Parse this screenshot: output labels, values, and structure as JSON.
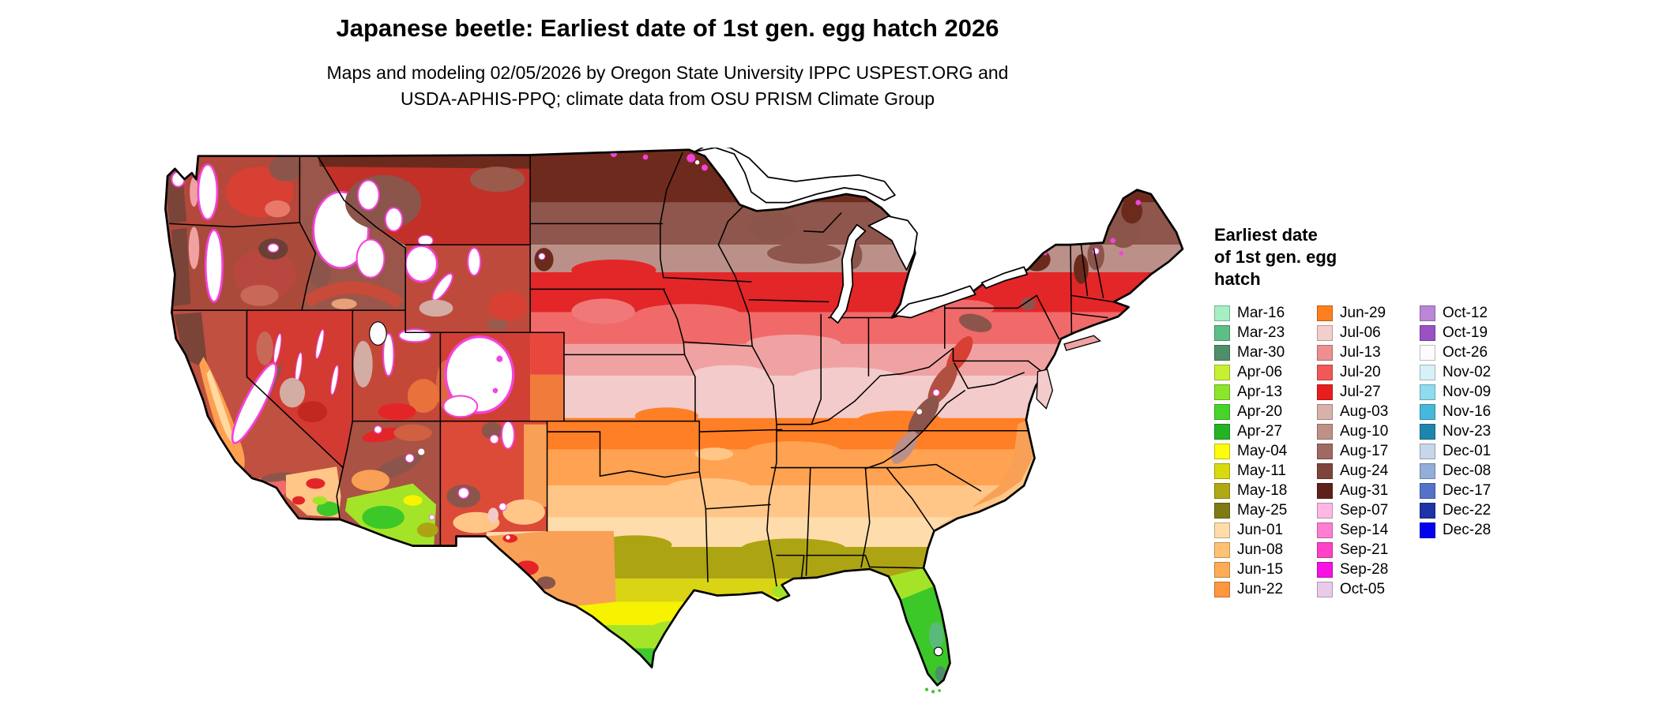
{
  "header": {
    "title": "Japanese beetle: Earliest date of 1st gen. egg hatch 2026",
    "subtitle_line1": "Maps and modeling 02/05/2026 by Oregon State University IPPC USPEST.ORG and",
    "subtitle_line2": "USDA-APHIS-PPQ; climate data from OSU PRISM Climate Group"
  },
  "legend": {
    "title_lines": [
      "Earliest date",
      "of 1st gen. egg",
      "hatch"
    ],
    "columns": [
      [
        {
          "label": "Mar-16",
          "color": "#A5EFC3"
        },
        {
          "label": "Mar-23",
          "color": "#5DBE86"
        },
        {
          "label": "Mar-30",
          "color": "#4F8E68"
        },
        {
          "label": "Apr-06",
          "color": "#C8F032"
        },
        {
          "label": "Apr-13",
          "color": "#8BE62B"
        },
        {
          "label": "Apr-20",
          "color": "#47D42A"
        },
        {
          "label": "Apr-27",
          "color": "#23B323"
        },
        {
          "label": "May-04",
          "color": "#FCFC0C"
        },
        {
          "label": "May-11",
          "color": "#D9D910"
        },
        {
          "label": "May-18",
          "color": "#B0A815"
        },
        {
          "label": "May-25",
          "color": "#7F7A14"
        },
        {
          "label": "Jun-01",
          "color": "#FFDCA8"
        },
        {
          "label": "Jun-08",
          "color": "#FFC172"
        },
        {
          "label": "Jun-15",
          "color": "#FFAB55"
        },
        {
          "label": "Jun-22",
          "color": "#FF9640"
        }
      ],
      [
        {
          "label": "Jun-29",
          "color": "#FF7F1E"
        },
        {
          "label": "Jul-06",
          "color": "#F4CDCD"
        },
        {
          "label": "Jul-13",
          "color": "#EE8E8E"
        },
        {
          "label": "Jul-20",
          "color": "#F25858"
        },
        {
          "label": "Jul-27",
          "color": "#E81E1E"
        },
        {
          "label": "Aug-03",
          "color": "#D8B2AA"
        },
        {
          "label": "Aug-10",
          "color": "#BE9088"
        },
        {
          "label": "Aug-17",
          "color": "#9E6A62"
        },
        {
          "label": "Aug-24",
          "color": "#7E453D"
        },
        {
          "label": "Aug-31",
          "color": "#5E211A"
        },
        {
          "label": "Sep-07",
          "color": "#FFB8E2"
        },
        {
          "label": "Sep-14",
          "color": "#FF7ED2"
        },
        {
          "label": "Sep-21",
          "color": "#FF42C8"
        },
        {
          "label": "Sep-28",
          "color": "#F711E3"
        },
        {
          "label": "Oct-05",
          "color": "#E9CBE9"
        }
      ],
      [
        {
          "label": "Oct-12",
          "color": "#BB86D6"
        },
        {
          "label": "Oct-19",
          "color": "#9A51C4"
        },
        {
          "label": "Oct-26",
          "color": "#FDFBFE"
        },
        {
          "label": "Nov-02",
          "color": "#D6F2F8"
        },
        {
          "label": "Nov-09",
          "color": "#8EDCEE"
        },
        {
          "label": "Nov-16",
          "color": "#46B8DC"
        },
        {
          "label": "Nov-23",
          "color": "#1E86AC"
        },
        {
          "label": "Dec-01",
          "color": "#C8D6EA"
        },
        {
          "label": "Dec-08",
          "color": "#93AED8"
        },
        {
          "label": "Dec-17",
          "color": "#5273C8"
        },
        {
          "label": "Dec-22",
          "color": "#1C34A4"
        },
        {
          "label": "Dec-28",
          "color": "#0202EE"
        }
      ]
    ]
  }
}
